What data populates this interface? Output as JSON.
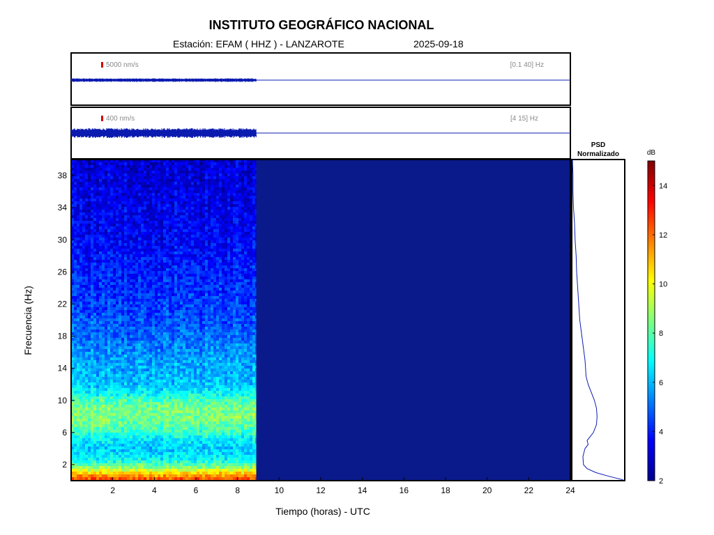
{
  "header": {
    "title": "INSTITUTO GEOGRÁFICO NACIONAL",
    "station": "Estación:  EFAM ( HHZ ) - LANZAROTE",
    "date": "2025-09-18"
  },
  "colors": {
    "trace": "#0b1bb0",
    "scale_marker": "#d40000",
    "spectrogram_background": "#0a1a8a"
  },
  "chart_data": [
    {
      "type": "line",
      "name": "trace-broadband",
      "scale_label": "5000 nm/s",
      "band_label": "[0.1 40] Hz",
      "data_until_hours": 8.9,
      "x_range": [
        0,
        24
      ]
    },
    {
      "type": "line",
      "name": "trace-filtered",
      "scale_label": "400 nm/s",
      "band_label": "[4 15] Hz",
      "data_until_hours": 8.9,
      "x_range": [
        0,
        24
      ]
    },
    {
      "type": "heatmap",
      "xlabel": "Tiempo (horas) - UTC",
      "ylabel": "Frecuencia  (Hz)",
      "xlim": [
        0,
        24
      ],
      "ylim": [
        0,
        40
      ],
      "x_ticks": [
        2,
        4,
        6,
        8,
        10,
        12,
        14,
        16,
        18,
        20,
        22,
        24
      ],
      "y_ticks": [
        2,
        6,
        10,
        14,
        18,
        22,
        26,
        30,
        34,
        38
      ],
      "data_until_hours": 8.9,
      "colorbar": {
        "label": "dB",
        "range": [
          2,
          15
        ],
        "ticks": [
          2,
          4,
          6,
          8,
          10,
          12,
          14
        ]
      },
      "frequency_profile_db": [
        {
          "f": 0.2,
          "db": 12.5
        },
        {
          "f": 0.8,
          "db": 11.0
        },
        {
          "f": 1.5,
          "db": 9.0
        },
        {
          "f": 2.5,
          "db": 7.0
        },
        {
          "f": 4,
          "db": 6.2
        },
        {
          "f": 5,
          "db": 6.6
        },
        {
          "f": 6,
          "db": 7.6
        },
        {
          "f": 7,
          "db": 8.2
        },
        {
          "f": 8,
          "db": 8.5
        },
        {
          "f": 9,
          "db": 8.5
        },
        {
          "f": 10,
          "db": 7.8
        },
        {
          "f": 11,
          "db": 6.8
        },
        {
          "f": 12,
          "db": 6.2
        },
        {
          "f": 14,
          "db": 5.9
        },
        {
          "f": 16,
          "db": 5.5
        },
        {
          "f": 18,
          "db": 5.0
        },
        {
          "f": 20,
          "db": 4.7
        },
        {
          "f": 22,
          "db": 4.4
        },
        {
          "f": 24,
          "db": 4.2
        },
        {
          "f": 26,
          "db": 4.0
        },
        {
          "f": 28,
          "db": 3.8
        },
        {
          "f": 30,
          "db": 3.6
        },
        {
          "f": 32,
          "db": 3.5
        },
        {
          "f": 34,
          "db": 3.4
        },
        {
          "f": 36,
          "db": 3.3
        },
        {
          "f": 38,
          "db": 3.2
        },
        {
          "f": 40,
          "db": 3.1
        }
      ]
    },
    {
      "type": "line",
      "name": "psd-normalizado",
      "title": "PSD Normalizado",
      "title_line1": "PSD",
      "title_line2": "Normalizado",
      "points": [
        {
          "f": 0.1,
          "v": 0.97
        },
        {
          "f": 0.5,
          "v": 0.72
        },
        {
          "f": 1,
          "v": 0.45
        },
        {
          "f": 1.5,
          "v": 0.28
        },
        {
          "f": 2,
          "v": 0.21
        },
        {
          "f": 3,
          "v": 0.2
        },
        {
          "f": 4,
          "v": 0.24
        },
        {
          "f": 4.5,
          "v": 0.3
        },
        {
          "f": 5,
          "v": 0.28
        },
        {
          "f": 6,
          "v": 0.4
        },
        {
          "f": 7,
          "v": 0.46
        },
        {
          "f": 8,
          "v": 0.47
        },
        {
          "f": 9,
          "v": 0.46
        },
        {
          "f": 10,
          "v": 0.42
        },
        {
          "f": 11,
          "v": 0.36
        },
        {
          "f": 12,
          "v": 0.3
        },
        {
          "f": 13,
          "v": 0.26
        },
        {
          "f": 14,
          "v": 0.25
        },
        {
          "f": 15,
          "v": 0.24
        },
        {
          "f": 16,
          "v": 0.22
        },
        {
          "f": 18,
          "v": 0.18
        },
        {
          "f": 20,
          "v": 0.14
        },
        {
          "f": 22,
          "v": 0.12
        },
        {
          "f": 24,
          "v": 0.1
        },
        {
          "f": 26,
          "v": 0.08
        },
        {
          "f": 28,
          "v": 0.07
        },
        {
          "f": 30,
          "v": 0.05
        },
        {
          "f": 32,
          "v": 0.04
        },
        {
          "f": 34,
          "v": 0.02
        },
        {
          "f": 36,
          "v": 0.01
        },
        {
          "f": 38,
          "v": 0.01
        },
        {
          "f": 40,
          "v": 0.0
        }
      ]
    }
  ]
}
